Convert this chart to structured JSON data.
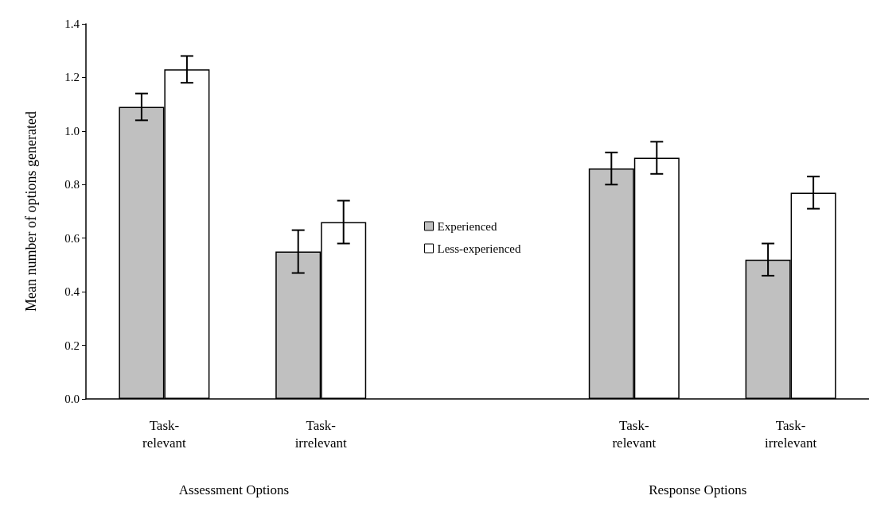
{
  "chart_data": {
    "type": "bar",
    "ylabel": "Mean number of options generated",
    "categories": [
      "Task-relevant",
      "Task-irrelevant",
      null,
      "Task-relevant",
      "Task-irrelevant"
    ],
    "series": [
      {
        "name": "Experienced",
        "color": "#c0c0c0",
        "values": [
          1.09,
          0.55,
          null,
          0.86,
          0.52
        ],
        "errors": [
          0.05,
          0.08,
          null,
          0.06,
          0.06
        ]
      },
      {
        "name": "Less-experienced",
        "color": "#ffffff",
        "values": [
          1.23,
          0.66,
          null,
          0.9,
          0.77
        ],
        "errors": [
          0.05,
          0.08,
          null,
          0.06,
          0.06
        ]
      }
    ],
    "annotations": [
      "Assessment Options",
      "Response Options"
    ],
    "ylim": [
      0,
      1.4
    ],
    "yticks": [
      {
        "value": 0,
        "label": "0.0"
      },
      0.2,
      0.4,
      0.6,
      0.8,
      {
        "value": 1,
        "label": "1.0"
      },
      1.2,
      1.4
    ],
    "grid": false,
    "legend": "center"
  }
}
